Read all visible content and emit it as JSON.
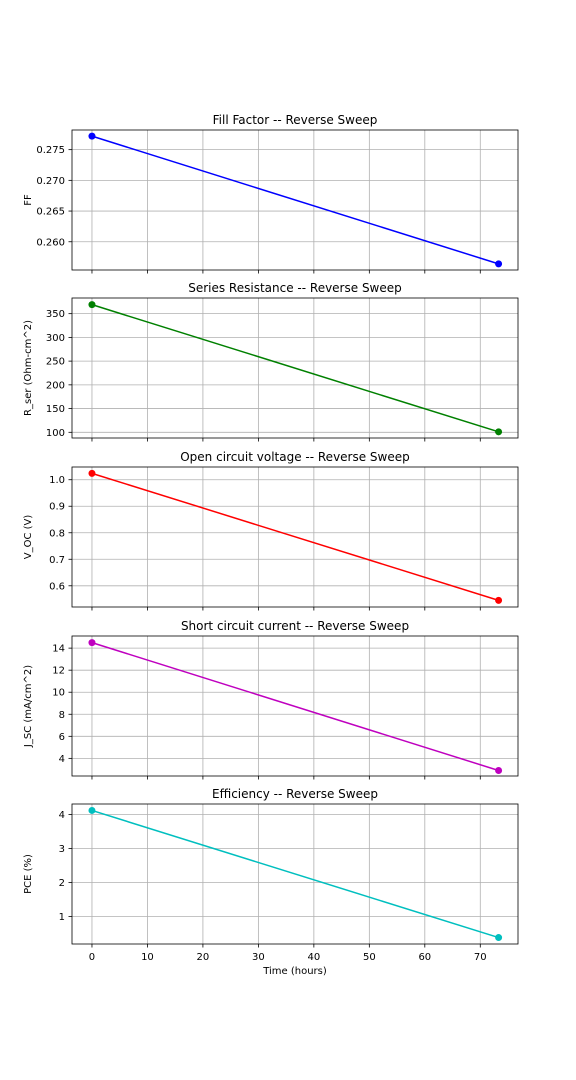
{
  "shared_x": {
    "label": "Time (hours)",
    "ticks": [
      0,
      10,
      20,
      30,
      40,
      50,
      60,
      70
    ],
    "xlim": [
      -3.6,
      76.8
    ]
  },
  "chart_data": [
    {
      "type": "line",
      "title": "Fill Factor -- Reverse Sweep",
      "xlabel": "",
      "ylabel": "FF",
      "x": [
        0,
        73.3
      ],
      "series": [
        {
          "values": [
            0.2772,
            0.2564
          ],
          "color": "#0000ff"
        }
      ],
      "ylim": [
        0.2554,
        0.2782
      ],
      "yticks": [
        0.26,
        0.265,
        0.27,
        0.275
      ],
      "ytick_labels": [
        "0.260",
        "0.265",
        "0.270",
        "0.275"
      ],
      "grid": true
    },
    {
      "type": "line",
      "title": "Series Resistance -- Reverse Sweep",
      "xlabel": "",
      "ylabel": "R_ser (Ohm-cm^2)",
      "x": [
        0,
        73.3
      ],
      "series": [
        {
          "values": [
            369,
            101
          ],
          "color": "#008000"
        }
      ],
      "ylim": [
        88,
        383
      ],
      "yticks": [
        100,
        150,
        200,
        250,
        300,
        350
      ],
      "ytick_labels": [
        "100",
        "150",
        "200",
        "250",
        "300",
        "350"
      ],
      "grid": true
    },
    {
      "type": "line",
      "title": "Open circuit voltage -- Reverse Sweep",
      "xlabel": "",
      "ylabel": "V_OC (V)",
      "x": [
        0,
        73.3
      ],
      "series": [
        {
          "values": [
            1.024,
            0.545
          ],
          "color": "#ff0000"
        }
      ],
      "ylim": [
        0.52,
        1.048
      ],
      "yticks": [
        0.6,
        0.7,
        0.8,
        0.9,
        1.0
      ],
      "ytick_labels": [
        "0.6",
        "0.7",
        "0.8",
        "0.9",
        "1.0"
      ],
      "grid": true
    },
    {
      "type": "line",
      "title": "Short circuit current -- Reverse Sweep",
      "xlabel": "",
      "ylabel": "J_SC (mA/cm^2)",
      "x": [
        0,
        73.3
      ],
      "series": [
        {
          "values": [
            14.5,
            2.9
          ],
          "color": "#bf00bf"
        }
      ],
      "ylim": [
        2.4,
        15.1
      ],
      "yticks": [
        4,
        6,
        8,
        10,
        12,
        14
      ],
      "ytick_labels": [
        "4",
        "6",
        "8",
        "10",
        "12",
        "14"
      ],
      "grid": true
    },
    {
      "type": "line",
      "title": "Efficiency -- Reverse Sweep",
      "xlabel": "Time (hours)",
      "ylabel": "PCE (%)",
      "x": [
        0,
        73.3
      ],
      "series": [
        {
          "values": [
            4.12,
            0.38
          ],
          "color": "#00bfbf"
        }
      ],
      "ylim": [
        0.19,
        4.31
      ],
      "yticks": [
        1,
        2,
        3,
        4
      ],
      "ytick_labels": [
        "1",
        "2",
        "3",
        "4"
      ],
      "grid": true
    }
  ]
}
